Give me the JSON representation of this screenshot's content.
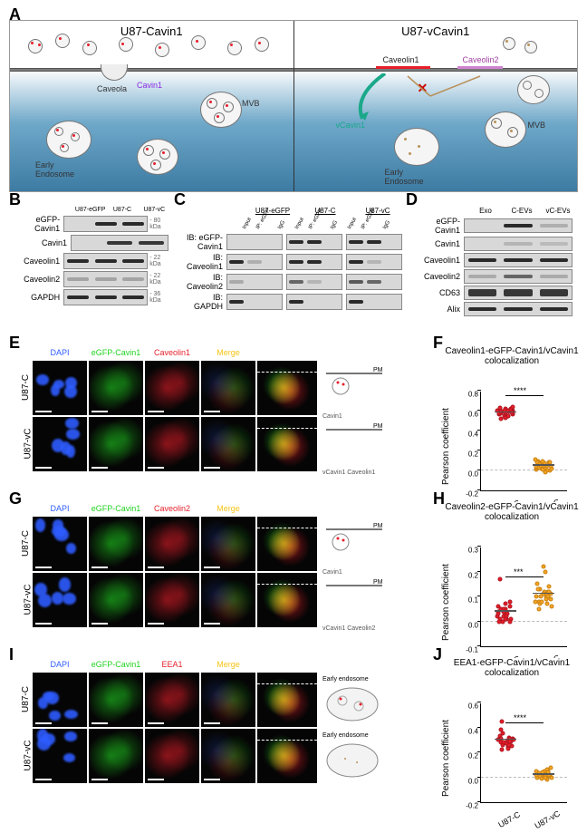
{
  "panelA": {
    "left_title": "U87-Cavin1",
    "right_title": "U87-vCavin1",
    "labels_left": {
      "caveola": "Caveola",
      "cavin1": "Cavin1",
      "mvb": "MVB",
      "early_endosome": "Early\nEndosome"
    },
    "labels_right": {
      "caveolin1": "Caveolin1",
      "caveolin2": "Caveolin2",
      "vcavin1": "vCavin1",
      "mvb": "MVB",
      "early_endosome": "Early\nEndosome"
    }
  },
  "panelB": {
    "headers": [
      "U87-eGFP",
      "U87-C",
      "U87-vC"
    ],
    "rows": [
      {
        "label": "eGFP-Cavin1",
        "kda": "80 kDa",
        "bands": [
          0,
          1,
          1
        ]
      },
      {
        "label": "Cavin1",
        "bands": [
          0,
          0.9,
          0.9
        ]
      },
      {
        "label": "Caveolin1",
        "kda": "22 kDa",
        "bands": [
          1,
          1,
          1
        ]
      },
      {
        "label": "Caveolin2",
        "kda": "22 kDa",
        "bands": [
          0.5,
          0.5,
          0.5
        ]
      },
      {
        "label": "GAPDH",
        "kda": "36 kDa",
        "bands": [
          1,
          1,
          1
        ]
      }
    ],
    "lane_width": 36,
    "blot_height": 18
  },
  "panelC": {
    "groups": [
      "U87-eGFP",
      "U87-C",
      "U87-vC"
    ],
    "sublanes": [
      "Input",
      "IP: eGFP",
      "IgG"
    ],
    "rows": [
      {
        "label": "IB: eGFP-Cavin1",
        "pattern": [
          [
            0,
            0,
            0
          ],
          [
            1,
            1,
            0
          ],
          [
            1,
            1,
            0
          ]
        ]
      },
      {
        "label": "IB: Caveolin1",
        "pattern": [
          [
            1,
            0.3,
            0
          ],
          [
            1,
            1,
            0
          ],
          [
            1,
            0.2,
            0
          ]
        ]
      },
      {
        "label": "IB: Caveolin2",
        "pattern": [
          [
            0.4,
            0,
            0
          ],
          [
            0.5,
            0.2,
            0
          ],
          [
            0.6,
            0.5,
            0
          ]
        ]
      },
      {
        "label": "IB: GAPDH",
        "pattern": [
          [
            1,
            0,
            0
          ],
          [
            1,
            0,
            0
          ],
          [
            1,
            0,
            0
          ]
        ]
      }
    ],
    "blot_height": 18
  },
  "panelD": {
    "headers": [
      "Exo",
      "C-EVs",
      "vC-EVs"
    ],
    "rows": [
      {
        "label": "eGFP-Cavin1",
        "bands": [
          0,
          1,
          0.3
        ]
      },
      {
        "label": "Cavin1",
        "bands": [
          0,
          0.2,
          0.1
        ]
      },
      {
        "label": "Caveolin1",
        "bands": [
          1,
          1,
          1
        ]
      },
      {
        "label": "Caveolin2",
        "bands": [
          0.4,
          0.5,
          0.4
        ]
      },
      {
        "label": "CD63",
        "bands": [
          0.9,
          0.9,
          0.9
        ],
        "smear": true
      },
      {
        "label": "Alix",
        "bands": [
          1,
          1,
          1
        ]
      }
    ],
    "lane_width": 40,
    "blot_height": 16
  },
  "confocal_common": {
    "channels": [
      "DAPI",
      "eGFP-Cavin1"
    ],
    "rows": [
      "U87-C",
      "U87-vC"
    ],
    "colors": {
      "DAPI": "#2e5cff",
      "eGFP-Cavin1": "#21d321",
      "Merge": "#f5c518"
    },
    "scalebar_text": "50μm"
  },
  "panelE": {
    "third_channel": "Caveolin1",
    "third_color": "#e61e2a",
    "schematic_labels": {
      "pm": "PM",
      "cavin1": "Cavin1",
      "vcavin1": "vCavin1",
      "caveolin1": "Caveolin1"
    }
  },
  "panelG": {
    "third_channel": "Caveolin2",
    "third_color": "#e61e2a",
    "schematic_labels": {
      "pm": "PM",
      "cavin1": "Cavin1",
      "vcavin1": "vCavin1",
      "caveolin2": "Caveolin2"
    }
  },
  "panelI": {
    "third_channel": "EEA1",
    "third_color": "#e61e2a",
    "schematic_label": "Early endosome"
  },
  "plots": {
    "F": {
      "title": "Caveolin1-eGFP-Cavin1/vCavin1\ncolocalization",
      "ylabel": "Pearson coefficient",
      "ylim": [
        -0.2,
        0.8
      ],
      "ytick_step": 0.2,
      "sig": "****",
      "groups": [
        {
          "name": "U87-C",
          "color": "#e61e2a",
          "mean": 0.58,
          "points": [
            0.52,
            0.55,
            0.58,
            0.6,
            0.62,
            0.57,
            0.59,
            0.61,
            0.54,
            0.56,
            0.63,
            0.58,
            0.6,
            0.55,
            0.57,
            0.62,
            0.59,
            0.56,
            0.6,
            0.58,
            0.64,
            0.53,
            0.57,
            0.61,
            0.59,
            0.55,
            0.6,
            0.58
          ]
        },
        {
          "name": "U87-vC",
          "color": "#f5a623",
          "mean": 0.05,
          "points": [
            0.0,
            0.02,
            0.05,
            0.08,
            0.03,
            0.06,
            0.01,
            0.07,
            0.04,
            0.09,
            0.02,
            0.05,
            0.0,
            0.06,
            0.08,
            0.03,
            0.11,
            -0.02,
            0.05,
            0.07,
            0.04,
            0.02,
            0.09,
            0.06,
            0.03,
            0.05,
            0.08,
            0.01
          ]
        }
      ]
    },
    "H": {
      "title": "Caveolin2-eGFP-Cavin1/vCavin1\ncolocalization",
      "ylabel": "Pearson coefficient",
      "ylim": [
        -0.1,
        0.3
      ],
      "ytick_step": 0.1,
      "sig": "***",
      "groups": [
        {
          "name": "U87-C",
          "color": "#e61e2a",
          "mean": 0.04,
          "points": [
            0.0,
            0.01,
            0.03,
            0.05,
            0.02,
            0.04,
            0.06,
            0.03,
            0.01,
            0.05,
            0.0,
            0.07,
            0.02,
            0.04,
            0.03,
            0.17,
            0.01,
            0.05,
            0.0,
            0.06,
            0.03,
            0.02,
            0.04,
            0.08,
            0.01
          ]
        },
        {
          "name": "U87-vC",
          "color": "#f5a623",
          "mean": 0.11,
          "points": [
            0.05,
            0.08,
            0.1,
            0.12,
            0.09,
            0.11,
            0.14,
            0.07,
            0.1,
            0.13,
            0.06,
            0.12,
            0.15,
            0.08,
            0.11,
            0.09,
            0.2,
            0.22,
            0.1,
            0.07,
            0.12,
            0.13,
            0.11,
            0.08,
            0.1
          ]
        }
      ]
    },
    "J": {
      "title": "EEA1-eGFP-Cavin1/vCavin1\ncolocalization",
      "ylabel": "Pearson coefficient",
      "ylim": [
        -0.2,
        0.6
      ],
      "ytick_step": 0.2,
      "sig": "****",
      "groups": [
        {
          "name": "U87-C",
          "color": "#e61e2a",
          "mean": 0.3,
          "points": [
            0.22,
            0.25,
            0.28,
            0.3,
            0.32,
            0.27,
            0.29,
            0.31,
            0.24,
            0.33,
            0.26,
            0.3,
            0.35,
            0.28,
            0.31,
            0.23,
            0.29,
            0.38,
            0.27,
            0.3,
            0.45,
            0.25,
            0.32,
            0.28,
            0.31,
            0.26,
            0.29
          ]
        },
        {
          "name": "U87-vC",
          "color": "#f5a623",
          "mean": 0.02,
          "points": [
            -0.02,
            0.0,
            0.02,
            0.04,
            0.01,
            0.03,
            0.05,
            0.0,
            0.02,
            0.06,
            -0.01,
            0.03,
            0.04,
            0.01,
            0.02,
            0.05,
            0.0,
            0.03,
            0.08,
            0.02,
            0.04,
            0.01,
            0.03,
            0.0,
            0.05,
            0.02,
            0.04
          ]
        }
      ]
    }
  },
  "labels": {
    "A": "A",
    "B": "B",
    "C": "C",
    "D": "D",
    "E": "E",
    "F": "F",
    "G": "G",
    "H": "H",
    "I": "I",
    "J": "J",
    "merge": "Merge"
  }
}
